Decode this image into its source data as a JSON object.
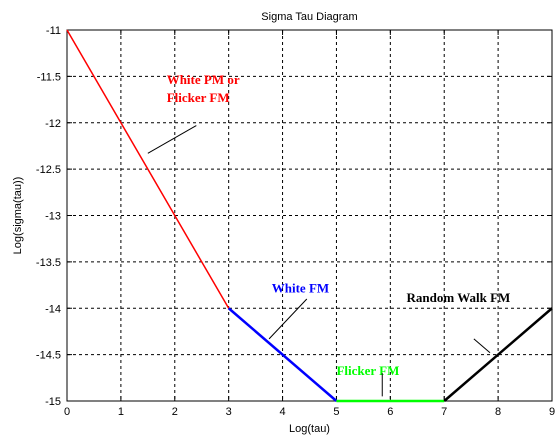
{
  "chart_data": {
    "type": "line",
    "title": "Sigma Tau Diagram",
    "xlabel": "Log(tau)",
    "ylabel": "Log(sigma(tau))",
    "xlim": [
      0,
      9
    ],
    "ylim": [
      -15,
      -11
    ],
    "grid": true,
    "x_ticks": [
      "0",
      "1",
      "2",
      "3",
      "4",
      "5",
      "6",
      "7",
      "8",
      "9"
    ],
    "y_ticks": [
      "-11",
      "-11.5",
      "-12",
      "-12.5",
      "-13",
      "-13.5",
      "-14",
      "-14.5",
      "-15"
    ],
    "series": [
      {
        "color": "#ff0000",
        "x": [
          0,
          3
        ],
        "y": [
          -11,
          -14
        ]
      },
      {
        "color": "#0000ff",
        "x": [
          3,
          5
        ],
        "y": [
          -14,
          -15
        ]
      },
      {
        "color": "#00ff00",
        "x": [
          5,
          7
        ],
        "y": [
          -15,
          -15
        ]
      },
      {
        "color": "#000000",
        "x": [
          7,
          9
        ],
        "y": [
          -15,
          -14
        ]
      }
    ],
    "annotations": [
      {
        "lines": [
          "White PM or",
          "Flicker FM"
        ],
        "color": "#ff0000",
        "x": 1.85,
        "y": -11.58,
        "pointer": [
          [
            1.5,
            -12.33
          ],
          [
            2.4,
            -12.03
          ]
        ]
      },
      {
        "lines": [
          "White FM"
        ],
        "color": "#0000ff",
        "x": 3.8,
        "y": -13.83,
        "pointer": [
          [
            3.75,
            -14.33
          ],
          [
            4.45,
            -13.9
          ]
        ]
      },
      {
        "lines": [
          "Flicker FM"
        ],
        "color": "#00ff00",
        "x": 5.0,
        "y": -14.72,
        "pointer": [
          [
            5.85,
            -14.95
          ],
          [
            5.85,
            -14.7
          ]
        ]
      },
      {
        "lines": [
          "Random Walk FM"
        ],
        "color": "#000000",
        "x": 6.3,
        "y": -13.93,
        "pointer": [
          [
            7.85,
            -14.48
          ],
          [
            7.55,
            -14.33
          ]
        ]
      }
    ]
  }
}
